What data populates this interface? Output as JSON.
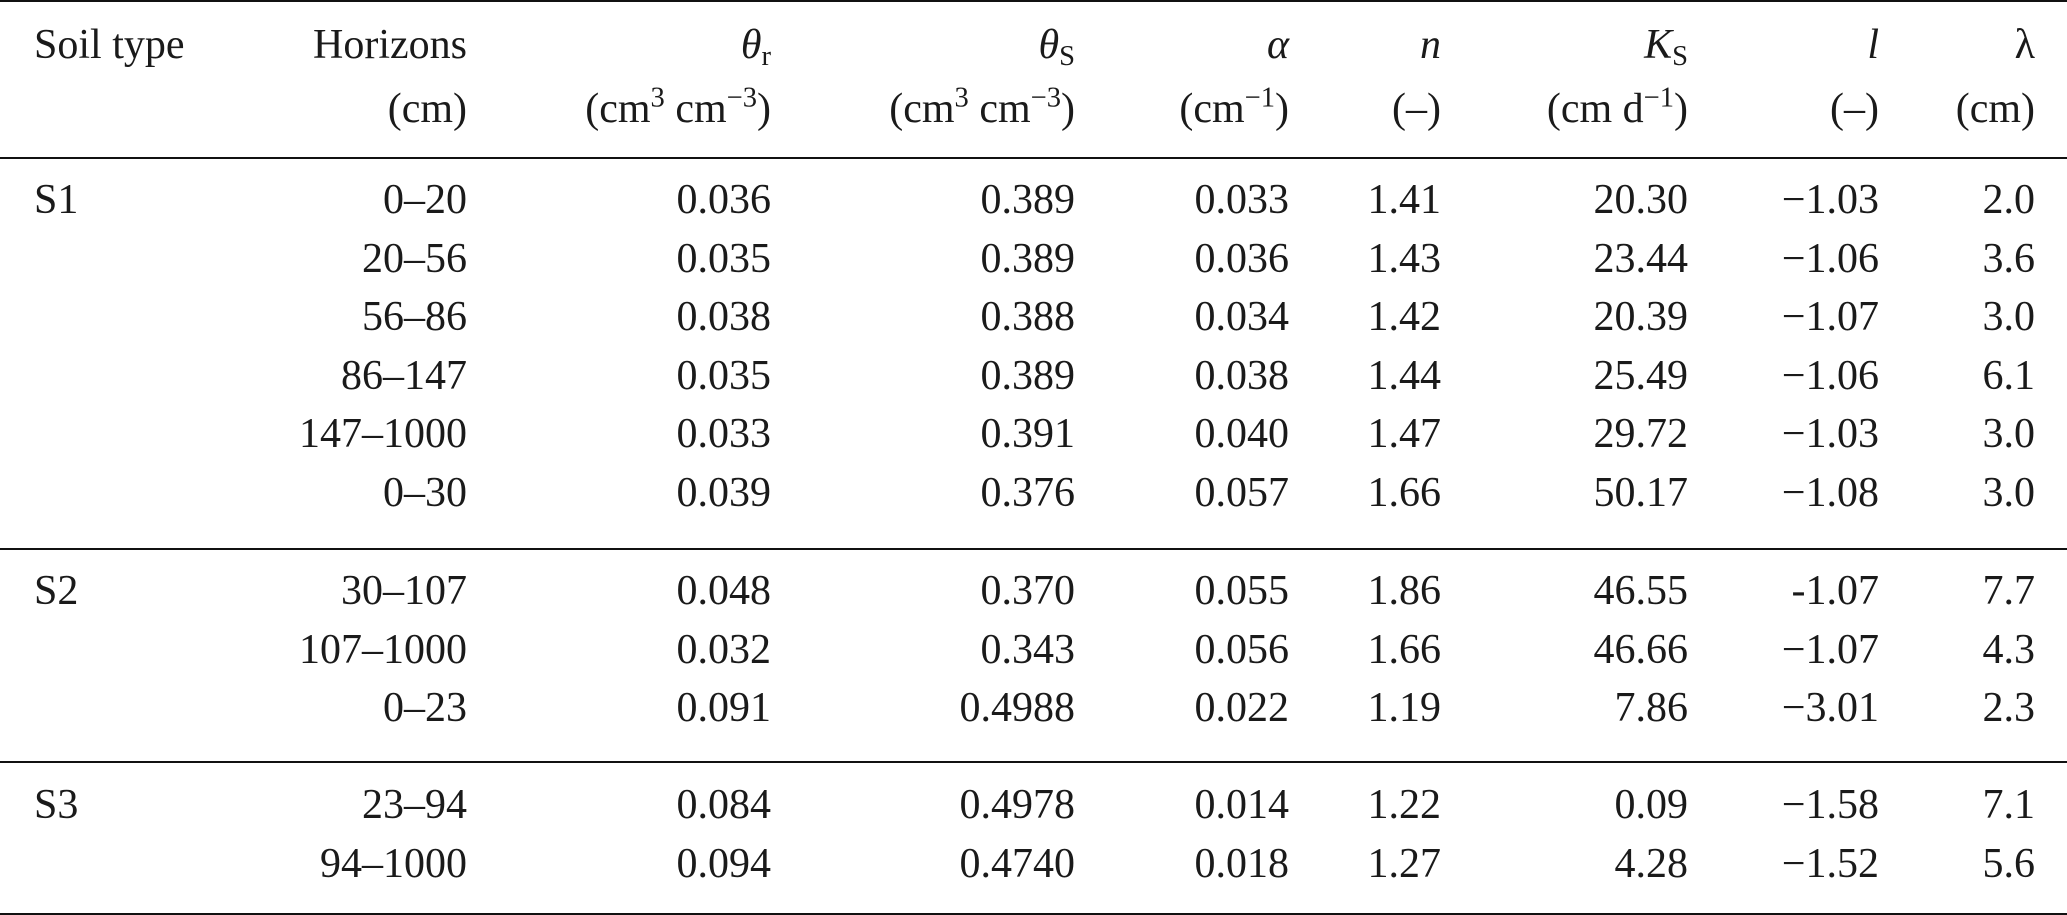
{
  "header": {
    "soil_type": "Soil type",
    "horizons": "Horizons",
    "horizons_unit": "(cm)",
    "theta_r_sym": "θ",
    "theta_r_sub": "r",
    "theta_s_sym": "θ",
    "theta_s_sub": "S",
    "vol_unit_a": "(cm",
    "vol_unit_sup1": "3",
    "vol_unit_b": " cm",
    "vol_unit_sup2": "−3",
    "vol_unit_c": ")",
    "alpha_sym": "α",
    "alpha_unit_a": "(cm",
    "alpha_unit_sup": "−1",
    "alpha_unit_c": ")",
    "n_sym": "n",
    "n_unit": "(–)",
    "ks_sym": "K",
    "ks_sub": "S",
    "ks_unit_a": "(cm d",
    "ks_unit_sup": "−1",
    "ks_unit_c": ")",
    "l_sym": "l",
    "l_unit": "(–)",
    "lambda_sym": "λ",
    "lambda_unit": "(cm)"
  },
  "rows": [
    {
      "soil": "S1",
      "horizon": "0–20",
      "theta_r": "0.036",
      "theta_s": "0.389",
      "alpha": "0.033",
      "n": "1.41",
      "ks": "20.30",
      "l": "−1.03",
      "lambda": "2.0"
    },
    {
      "soil": "",
      "horizon": "20–56",
      "theta_r": "0.035",
      "theta_s": "0.389",
      "alpha": "0.036",
      "n": "1.43",
      "ks": "23.44",
      "l": "−1.06",
      "lambda": "3.6"
    },
    {
      "soil": "",
      "horizon": "56–86",
      "theta_r": "0.038",
      "theta_s": "0.388",
      "alpha": "0.034",
      "n": "1.42",
      "ks": "20.39",
      "l": "−1.07",
      "lambda": "3.0"
    },
    {
      "soil": "",
      "horizon": "86–147",
      "theta_r": "0.035",
      "theta_s": "0.389",
      "alpha": "0.038",
      "n": "1.44",
      "ks": "25.49",
      "l": "−1.06",
      "lambda": "6.1"
    },
    {
      "soil": "",
      "horizon": "147–1000",
      "theta_r": "0.033",
      "theta_s": "0.391",
      "alpha": "0.040",
      "n": "1.47",
      "ks": "29.72",
      "l": "−1.03",
      "lambda": "3.0"
    },
    {
      "soil": "",
      "horizon": "0–30",
      "theta_r": "0.039",
      "theta_s": "0.376",
      "alpha": "0.057",
      "n": "1.66",
      "ks": "50.17",
      "l": "−1.08",
      "lambda": "3.0"
    },
    {
      "soil": "S2",
      "horizon": "30–107",
      "theta_r": "0.048",
      "theta_s": "0.370",
      "alpha": "0.055",
      "n": "1.86",
      "ks": "46.55",
      "l": "-1.07",
      "lambda": "7.7"
    },
    {
      "soil": "",
      "horizon": "107–1000",
      "theta_r": "0.032",
      "theta_s": "0.343",
      "alpha": "0.056",
      "n": "1.66",
      "ks": "46.66",
      "l": "−1.07",
      "lambda": "4.3"
    },
    {
      "soil": "",
      "horizon": "0–23",
      "theta_r": "0.091",
      "theta_s": "0.4988",
      "alpha": "0.022",
      "n": "1.19",
      "ks": "7.86",
      "l": "−3.01",
      "lambda": "2.3"
    },
    {
      "soil": "S3",
      "horizon": "23–94",
      "theta_r": "0.084",
      "theta_s": "0.4978",
      "alpha": "0.014",
      "n": "1.22",
      "ks": "0.09",
      "l": "−1.58",
      "lambda": "7.1"
    },
    {
      "soil": "",
      "horizon": "94–1000",
      "theta_r": "0.094",
      "theta_s": "0.4740",
      "alpha": "0.018",
      "n": "1.27",
      "ks": "4.28",
      "l": "−1.52",
      "lambda": "5.6"
    }
  ]
}
